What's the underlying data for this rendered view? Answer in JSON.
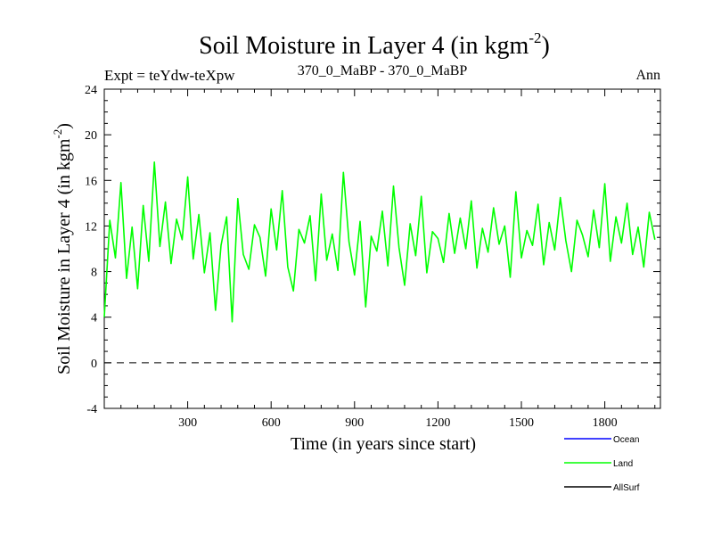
{
  "chart_data": {
    "type": "line",
    "title": "Soil Moisture in Layer 4 (in kgm",
    "title_sup": "-2",
    "title_close": ")",
    "subtitle_left": "Expt = teYdw-teXpw",
    "subtitle_center": "370_0_MaBP - 370_0_MaBP",
    "subtitle_right": "Ann",
    "xlabel": "Time (in years since start)",
    "ylabel": "Soil Moisture in Layer 4 (in kgm",
    "ylabel_sup": "-2",
    "ylabel_close": ")",
    "xlim": [
      0,
      2000
    ],
    "ylim": [
      -4,
      24
    ],
    "x_ticks": [
      300,
      600,
      900,
      1200,
      1500,
      1800
    ],
    "y_ticks": [
      -4,
      0,
      4,
      8,
      12,
      16,
      20,
      24
    ],
    "reference_line": 0,
    "series": [
      {
        "name": "Ocean",
        "color": "#0000ff",
        "values": []
      },
      {
        "name": "Land",
        "color": "#00ff00",
        "x_start": 0,
        "x_step": 20,
        "values": [
          4.0,
          12.5,
          9.2,
          15.8,
          7.4,
          11.9,
          6.5,
          13.8,
          8.9,
          17.6,
          10.2,
          14.1,
          8.7,
          12.6,
          10.8,
          16.3,
          9.1,
          13.0,
          7.9,
          11.4,
          4.6,
          10.3,
          12.8,
          3.6,
          14.4,
          9.5,
          8.2,
          12.1,
          11.0,
          7.6,
          13.5,
          9.9,
          15.1,
          8.4,
          6.3,
          11.7,
          10.5,
          12.9,
          7.2,
          14.8,
          9.0,
          11.3,
          8.1,
          16.7,
          10.6,
          7.7,
          12.4,
          4.9,
          11.1,
          9.8,
          13.3,
          8.5,
          15.5,
          10.1,
          6.8,
          12.2,
          9.4,
          14.6,
          7.9,
          11.5,
          10.9,
          8.8,
          13.1,
          9.6,
          12.7,
          10.0,
          14.2,
          8.3,
          11.8,
          9.7,
          13.6,
          10.4,
          12.0,
          7.5,
          15.0,
          9.2,
          11.6,
          10.3,
          13.9,
          8.6,
          12.3,
          9.9,
          14.5,
          10.7,
          8.0,
          12.5,
          11.2,
          9.3,
          13.4,
          10.1,
          15.7,
          8.9,
          12.8,
          10.5,
          14.0,
          9.5,
          11.9,
          8.4,
          13.2,
          10.8
        ]
      },
      {
        "name": "AllSurf",
        "color": "#000000",
        "values": []
      }
    ]
  }
}
